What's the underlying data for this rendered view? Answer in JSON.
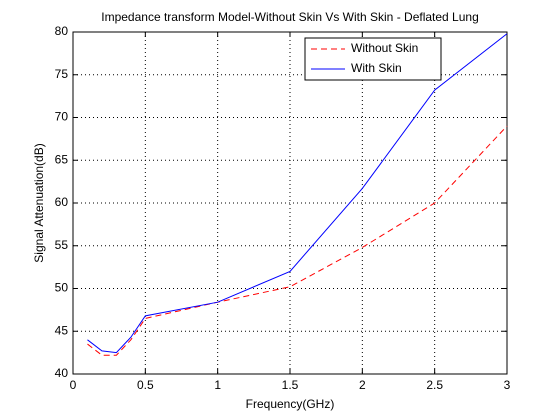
{
  "chart_data": {
    "type": "line",
    "title": "Impedance transform Model-Without Skin Vs With Skin - Deflated Lung",
    "x_label": "Frequency(GHz)",
    "y_label": "Signal Attenuation(dB)",
    "x": [
      0.1,
      0.2,
      0.3,
      0.4,
      0.5,
      1,
      1.5,
      2,
      2.5,
      3
    ],
    "series": [
      {
        "name": "Without Skin",
        "color": "#ff0000",
        "dash": true,
        "values": [
          43.5,
          42.2,
          42.2,
          44,
          46.5,
          48.4,
          50.2,
          54.8,
          60,
          69
        ]
      },
      {
        "name": "With Skin",
        "color": "#0000ff",
        "dash": false,
        "values": [
          44,
          42.7,
          42.5,
          44.3,
          46.8,
          48.4,
          52,
          61.7,
          73.2,
          79.8
        ]
      }
    ],
    "xlim": [
      0,
      3
    ],
    "xticks": [
      0,
      0.5,
      1,
      1.5,
      2,
      2.5,
      3
    ],
    "ylim": [
      40,
      80
    ],
    "yticks": [
      40,
      45,
      50,
      55,
      60,
      65,
      70,
      75,
      80
    ],
    "grid": true,
    "legend": "top-right"
  }
}
